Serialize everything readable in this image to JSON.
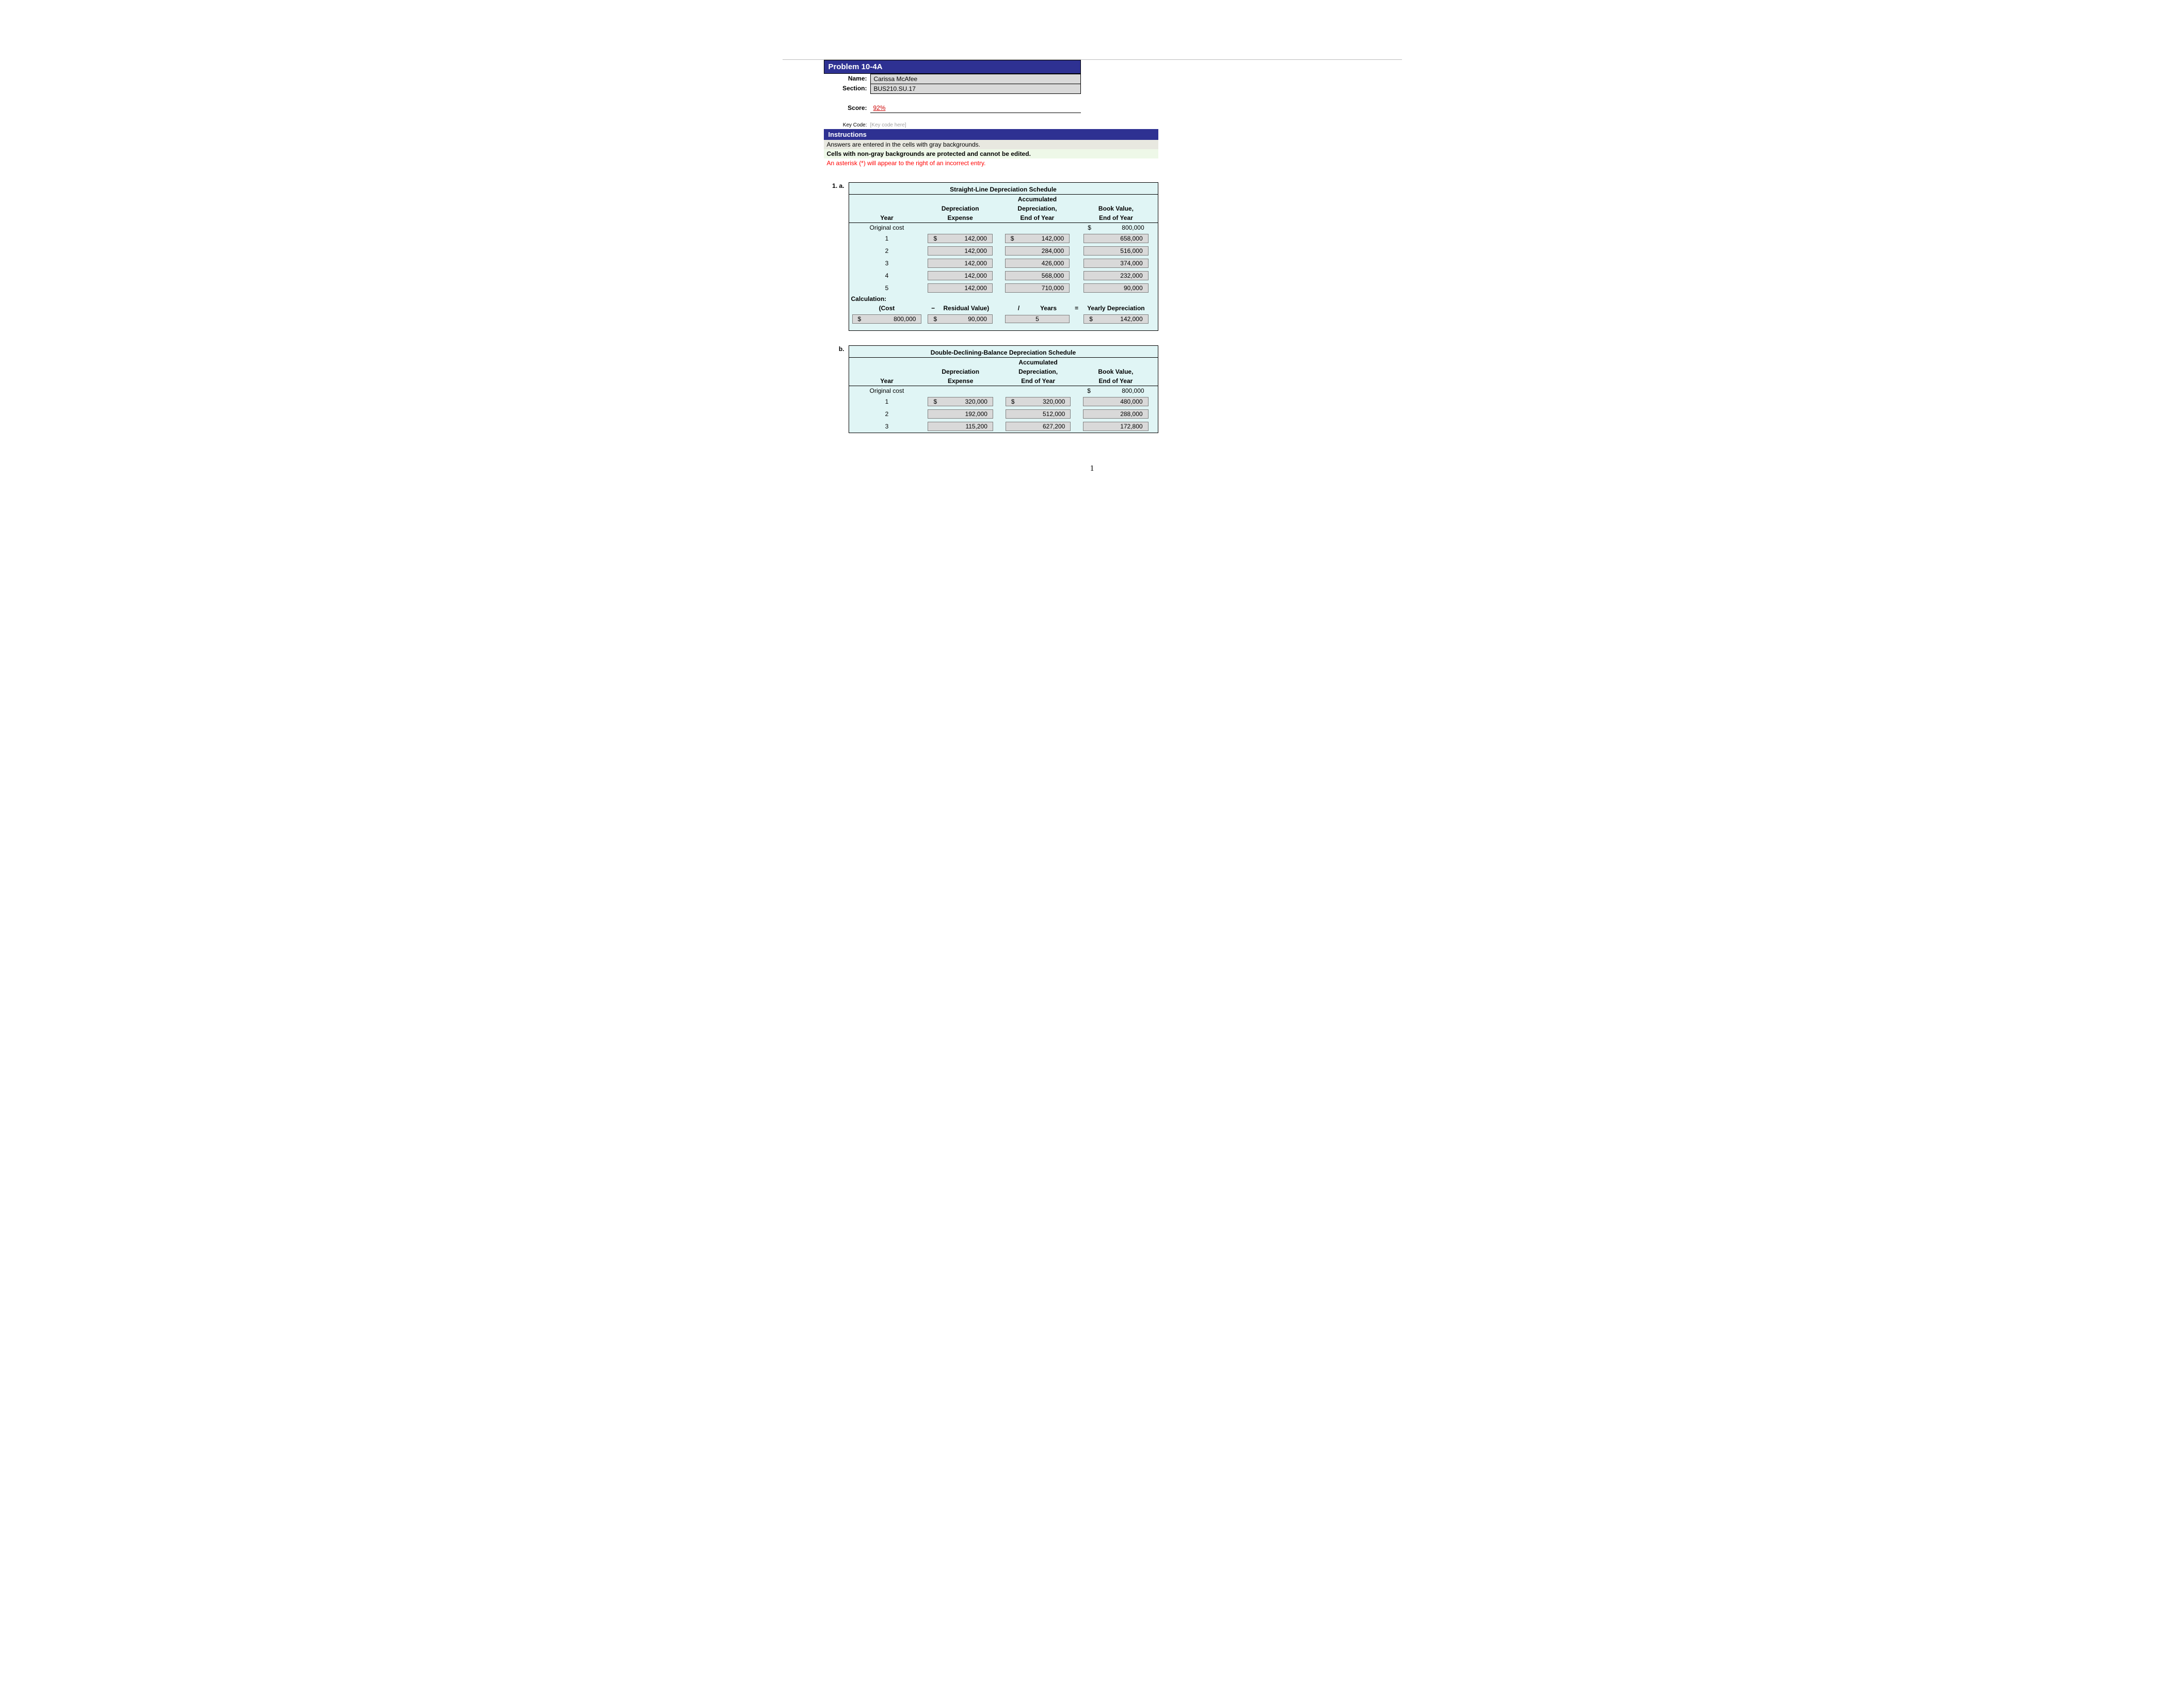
{
  "header": {
    "problem": "Problem 10-4A",
    "name_label": "Name:",
    "name_value": "Carissa McAfee",
    "section_label": "Section:",
    "section_value": "BUS210.SU.17",
    "score_label": "Score:",
    "score_value": "92%",
    "keycode_label": "Key Code:",
    "keycode_placeholder": "[Key code here]"
  },
  "instructions": {
    "title": "Instructions",
    "line1": "Answers are entered in the cells with gray backgrounds.",
    "line2": "Cells with non-gray backgrounds are protected and cannot be edited.",
    "line3": "An asterisk (*) will appear to the right of an incorrect entry."
  },
  "section_1a": {
    "number": "1. a.",
    "title": "Straight-Line Depreciation Schedule",
    "cols": {
      "year": "Year",
      "dep1": "Depreciation",
      "dep2": "Expense",
      "acc1": "Accumulated",
      "acc2": "Depreciation,",
      "acc3": "End of Year",
      "bv1": "Book Value,",
      "bv2": "End of Year"
    },
    "orig_label": "Original cost",
    "orig_bv": "800,000",
    "rows": [
      {
        "year": "1",
        "dep_sym": "$",
        "dep": "142,000",
        "acc_sym": "$",
        "acc": "142,000",
        "bv": "658,000"
      },
      {
        "year": "2",
        "dep_sym": "",
        "dep": "142,000",
        "acc_sym": "",
        "acc": "284,000",
        "bv": "516,000"
      },
      {
        "year": "3",
        "dep_sym": "",
        "dep": "142,000",
        "acc_sym": "",
        "acc": "426,000",
        "bv": "374,000"
      },
      {
        "year": "4",
        "dep_sym": "",
        "dep": "142,000",
        "acc_sym": "",
        "acc": "568,000",
        "bv": "232,000"
      },
      {
        "year": "5",
        "dep_sym": "",
        "dep": "142,000",
        "acc_sym": "",
        "acc": "710,000",
        "bv": "90,000"
      }
    ],
    "calc_label": "Calculation:",
    "calc": {
      "h_cost": "(Cost",
      "h_minus": "−",
      "h_res": "Residual Value)",
      "h_div": "/",
      "h_years": "Years",
      "h_eq": "=",
      "h_yrdep": "Yearly Depreciation",
      "cost_sym": "$",
      "cost": "800,000",
      "res_sym": "$",
      "res": "90,000",
      "years": "5",
      "yd_sym": "$",
      "yd": "142,000"
    }
  },
  "section_1b": {
    "number": "b.",
    "title": "Double-Declining-Balance Depreciation Schedule",
    "cols": {
      "year": "Year",
      "dep1": "Depreciation",
      "dep2": "Expense",
      "acc1": "Accumulated",
      "acc2": "Depreciation,",
      "acc3": "End of Year",
      "bv1": "Book Value,",
      "bv2": "End of Year"
    },
    "orig_label": "Original cost",
    "orig_bv": "800,000",
    "rows": [
      {
        "year": "1",
        "dep_sym": "$",
        "dep": "320,000",
        "acc_sym": "$",
        "acc": "320,000",
        "bv": "480,000"
      },
      {
        "year": "2",
        "dep_sym": "",
        "dep": "192,000",
        "acc_sym": "",
        "acc": "512,000",
        "bv": "288,000"
      },
      {
        "year": "3",
        "dep_sym": "",
        "dep": "115,200",
        "acc_sym": "",
        "acc": "627,200",
        "bv": "172,800"
      }
    ]
  },
  "page_number": "1"
}
